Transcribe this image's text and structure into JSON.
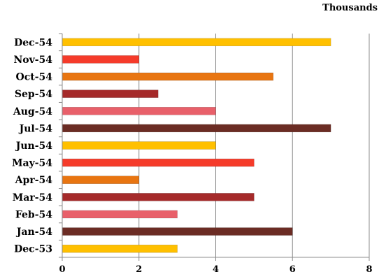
{
  "chart_data": {
    "type": "bar",
    "orientation": "horizontal",
    "units_label": "Thousands",
    "categories": [
      "Dec-53",
      "Jan-54",
      "Feb-54",
      "Mar-54",
      "Apr-54",
      "May-54",
      "Jun-54",
      "Jul-54",
      "Aug-54",
      "Sep-54",
      "Oct-54",
      "Nov-54",
      "Dec-54"
    ],
    "values": [
      3,
      6,
      3,
      5,
      2,
      5,
      4,
      7,
      4,
      2.5,
      5.5,
      2,
      7
    ],
    "colors": [
      "#FFC000",
      "#6B2C24",
      "#E8606A",
      "#A52A2A",
      "#E87511",
      "#F53B2A",
      "#FFC000",
      "#6B2C24",
      "#E8606A",
      "#A52A2A",
      "#E87511",
      "#F53B2A",
      "#FFC000"
    ],
    "xlim": [
      0,
      8
    ],
    "xticks": [
      0,
      2,
      4,
      6,
      8
    ],
    "grid": "vertical"
  }
}
